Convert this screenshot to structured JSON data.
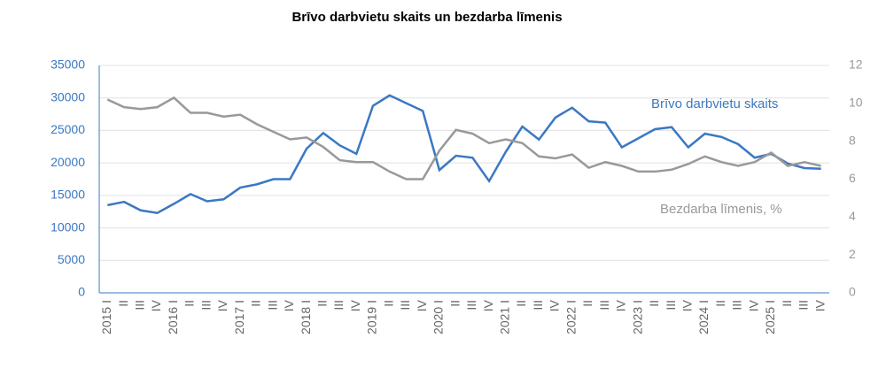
{
  "chart_data": {
    "type": "line",
    "title": "Brīvo darbvietu skaits un bezdarba līmenis",
    "categories": [
      "2015 I",
      "II",
      "III",
      "IV",
      "2016 I",
      "II",
      "III",
      "IV",
      "2017 I",
      "II",
      "III",
      "IV",
      "2018 I",
      "II",
      "III",
      "IV",
      "2019 I",
      "II",
      "III",
      "IV",
      "2020 I",
      "II",
      "III",
      "IV",
      "2021 I",
      "II",
      "III",
      "IV",
      "2022 I",
      "II",
      "III",
      "IV",
      "2023 I",
      "II",
      "III",
      "IV",
      "2024 I",
      "II",
      "III",
      "IV",
      "2025 I",
      "II",
      "III",
      "IV"
    ],
    "series": [
      {
        "name": "Brīvo darbvietu skaits",
        "color": "#3a78c3",
        "values": [
          13500,
          14000,
          12700,
          12300,
          13700,
          15200,
          14100,
          14400,
          16200,
          16700,
          17500,
          17500,
          22200,
          24600,
          22700,
          21400,
          28800,
          30400,
          29200,
          28000,
          18900,
          21100,
          20800,
          17200,
          21700,
          25600,
          23600,
          27000,
          28500,
          26400,
          26200,
          22400,
          23800,
          25200,
          25500,
          22400,
          24500,
          24000,
          22900,
          20800,
          21400,
          19900,
          19200,
          19100
        ]
      },
      {
        "name": "Bezdarba līmenis, %",
        "color": "#999999",
        "axis": "y2",
        "values": [
          10.2,
          9.8,
          9.7,
          9.8,
          10.3,
          9.5,
          9.5,
          9.3,
          9.4,
          8.9,
          8.5,
          8.1,
          8.2,
          7.7,
          7.0,
          6.9,
          6.9,
          6.4,
          6.0,
          6.0,
          7.5,
          8.6,
          8.4,
          7.9,
          8.1,
          7.9,
          7.2,
          7.1,
          7.3,
          6.6,
          6.9,
          6.7,
          6.4,
          6.4,
          6.5,
          6.8,
          7.2,
          6.9,
          6.7,
          6.9,
          7.4,
          6.7,
          6.9,
          6.7
        ]
      }
    ],
    "ylim": [
      0,
      35000
    ],
    "yticks": [
      0,
      5000,
      10000,
      15000,
      20000,
      25000,
      30000,
      35000
    ],
    "y2lim": [
      0,
      12
    ],
    "y2ticks": [
      0,
      2,
      4,
      6,
      8,
      10,
      12
    ],
    "grid": true
  }
}
